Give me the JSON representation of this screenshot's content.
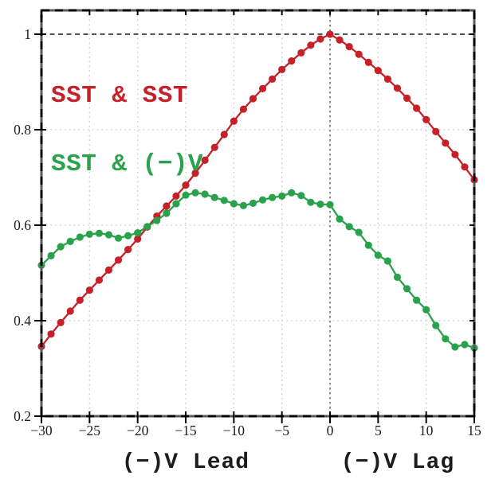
{
  "chart_data": {
    "type": "line",
    "title": "",
    "xlabel_left": "(−)V Lead",
    "xlabel_right": "(−)V Lag",
    "xlim": [
      -30,
      15
    ],
    "ylim": [
      0.2,
      1.05
    ],
    "xticks": [
      -30,
      -25,
      -20,
      -15,
      -10,
      -5,
      0,
      5,
      10,
      15
    ],
    "xtick_labels": [
      "−30",
      "−25",
      "−20",
      "−15",
      "−10",
      "−5",
      "0",
      "5",
      "10",
      "15"
    ],
    "yticks": [
      0.2,
      0.4,
      0.6,
      0.8,
      1.0
    ],
    "ytick_labels": [
      "0.2",
      "0.4",
      "0.6",
      "0.8",
      "1"
    ],
    "grid": {
      "x_values": [
        -25,
        -20,
        -15,
        -10,
        -5,
        5,
        10
      ],
      "y_values": [
        0.4,
        0.6,
        0.8
      ],
      "color": "#c9c9c9"
    },
    "reference_lines": [
      {
        "name": "unity-correlation-line",
        "axis": "y",
        "value": 1.0,
        "color": "#1a1a1a",
        "dash": "6 4.5",
        "width": 1.6
      },
      {
        "name": "zero-lag-line",
        "axis": "x",
        "value": 0,
        "color": "#8c8c8c",
        "dash": "2.5 3.5",
        "width": 2
      }
    ],
    "legend_position": "top-left",
    "x": [
      -30,
      -29,
      -28,
      -27,
      -26,
      -25,
      -24,
      -23,
      -22,
      -21,
      -20,
      -19,
      -18,
      -17,
      -16,
      -15,
      -14,
      -13,
      -12,
      -11,
      -10,
      -9,
      -8,
      -7,
      -6,
      -5,
      -4,
      -3,
      -2,
      -1,
      0,
      1,
      2,
      3,
      4,
      5,
      6,
      7,
      8,
      9,
      10,
      11,
      12,
      13,
      14,
      15
    ],
    "series": [
      {
        "name": "SST & SST",
        "color": "#c42129",
        "values": [
          0.346,
          0.372,
          0.396,
          0.42,
          0.443,
          0.464,
          0.485,
          0.506,
          0.527,
          0.549,
          0.571,
          0.596,
          0.619,
          0.64,
          0.661,
          0.684,
          0.709,
          0.736,
          0.763,
          0.79,
          0.818,
          0.843,
          0.865,
          0.886,
          0.906,
          0.926,
          0.944,
          0.961,
          0.977,
          0.99,
          1.0,
          0.988,
          0.974,
          0.958,
          0.941,
          0.924,
          0.906,
          0.887,
          0.866,
          0.845,
          0.821,
          0.796,
          0.772,
          0.748,
          0.722,
          0.695
        ]
      },
      {
        "name": "SST & (−)V",
        "color": "#2aa24c",
        "values": [
          0.516,
          0.536,
          0.555,
          0.566,
          0.575,
          0.581,
          0.583,
          0.58,
          0.573,
          0.578,
          0.584,
          0.597,
          0.61,
          0.625,
          0.645,
          0.663,
          0.668,
          0.665,
          0.658,
          0.652,
          0.645,
          0.641,
          0.646,
          0.653,
          0.658,
          0.661,
          0.668,
          0.662,
          0.648,
          0.644,
          0.643,
          0.613,
          0.597,
          0.585,
          0.558,
          0.537,
          0.525,
          0.491,
          0.467,
          0.443,
          0.423,
          0.39,
          0.362,
          0.345,
          0.35,
          0.343
        ]
      }
    ]
  }
}
